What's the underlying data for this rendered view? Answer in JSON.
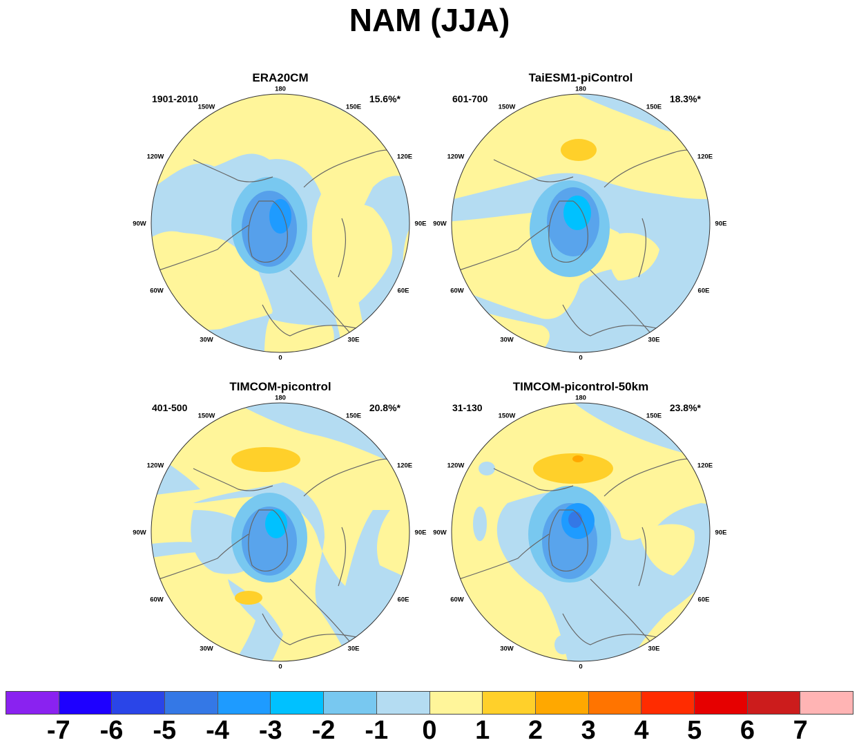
{
  "title": "NAM (JJA)",
  "panels": [
    {
      "id": "p1",
      "title": "ERA20CM",
      "period": "1901-2010",
      "variance": "15.6%*"
    },
    {
      "id": "p2",
      "title": "TaiESM1-piControl",
      "period": "601-700",
      "variance": "18.3%*"
    },
    {
      "id": "p3",
      "title": "TIMCOM-picontrol",
      "period": "401-500",
      "variance": "20.8%*"
    },
    {
      "id": "p4",
      "title": "TIMCOM-picontrol-50km",
      "period": "31-130",
      "variance": "23.8%*"
    }
  ],
  "longitude_labels": [
    "180",
    "150E",
    "120E",
    "90E",
    "60E",
    "30E",
    "0",
    "30W",
    "60W",
    "90W",
    "120W",
    "150W"
  ],
  "colorbar": {
    "colors": [
      "#8a22f0",
      "#1e00ff",
      "#2a45e8",
      "#3478e6",
      "#1e9bff",
      "#00c1ff",
      "#78c8f0",
      "#b4dcf2",
      "#fff59a",
      "#ffd02a",
      "#ffa800",
      "#ff7400",
      "#ff2c00",
      "#e60000",
      "#cc1c1c",
      "#ffb4b4"
    ],
    "labels": [
      "-7",
      "-6",
      "-5",
      "-4",
      "-3",
      "-2",
      "-1",
      "0",
      "1",
      "2",
      "3",
      "4",
      "5",
      "6",
      "7"
    ]
  },
  "palette": {
    "coast": "#666666",
    "land_outline": "#333333"
  }
}
